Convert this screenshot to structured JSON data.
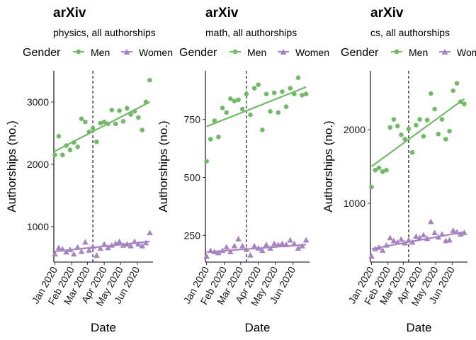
{
  "chart_data": [
    {
      "type": "scatter",
      "title": "arXiv",
      "subtitle": "physics, all authorships",
      "xlabel": "Date",
      "ylabel": "Authorships (no.)",
      "legend": {
        "title": "Gender",
        "position": "top"
      },
      "x_ticks": [
        "Jan 2020",
        "Feb 2020",
        "Mar 2020",
        "Apr 2020",
        "May 2020",
        "Jun 2020"
      ],
      "y_ticks": [
        1000,
        2000,
        3000
      ],
      "xlim": [
        "2019-12-30",
        "2020-06-30"
      ],
      "ylim": [
        430,
        3500
      ],
      "vline": "2020-03-11",
      "series": [
        {
          "name": "Men",
          "marker": "circle",
          "color": "#74b86a",
          "x": [
            "2020-01-01",
            "2020-01-08",
            "2020-01-15",
            "2020-01-22",
            "2020-01-29",
            "2020-02-05",
            "2020-02-12",
            "2020-02-19",
            "2020-02-26",
            "2020-03-04",
            "2020-03-11",
            "2020-03-18",
            "2020-03-25",
            "2020-04-01",
            "2020-04-08",
            "2020-04-15",
            "2020-04-22",
            "2020-04-29",
            "2020-05-06",
            "2020-05-13",
            "2020-05-20",
            "2020-05-27",
            "2020-06-03",
            "2020-06-10",
            "2020-06-17",
            "2020-06-24"
          ],
          "y": [
            2150,
            2450,
            2150,
            2300,
            2230,
            2350,
            2280,
            2730,
            2680,
            2520,
            2580,
            2360,
            2660,
            2680,
            2650,
            2870,
            2650,
            2860,
            2690,
            2900,
            2800,
            2850,
            2750,
            2550,
            3000,
            3350
          ],
          "trend": {
            "x": [
              "2020-01-01",
              "2020-06-24"
            ],
            "y": [
              2210,
              3000
            ]
          }
        },
        {
          "name": "Women",
          "marker": "triangle",
          "color": "#a783c1",
          "x": [
            "2020-01-01",
            "2020-01-08",
            "2020-01-15",
            "2020-01-22",
            "2020-01-29",
            "2020-02-05",
            "2020-02-12",
            "2020-02-19",
            "2020-02-26",
            "2020-03-04",
            "2020-03-11",
            "2020-03-18",
            "2020-03-25",
            "2020-04-01",
            "2020-04-08",
            "2020-04-15",
            "2020-04-22",
            "2020-04-29",
            "2020-05-06",
            "2020-05-13",
            "2020-05-20",
            "2020-05-27",
            "2020-06-03",
            "2020-06-10",
            "2020-06-17",
            "2020-06-24"
          ],
          "y": [
            560,
            660,
            640,
            590,
            630,
            560,
            670,
            600,
            750,
            620,
            680,
            540,
            650,
            720,
            660,
            700,
            730,
            760,
            700,
            720,
            690,
            760,
            720,
            690,
            740,
            900
          ],
          "trend": {
            "x": [
              "2020-01-01",
              "2020-06-24"
            ],
            "y": [
              600,
              760
            ]
          }
        }
      ]
    },
    {
      "type": "scatter",
      "title": "arXiv",
      "subtitle": "math, all authorships",
      "xlabel": "Date",
      "ylabel": "Authorships (no.)",
      "legend": {
        "title": "Gender",
        "position": "top"
      },
      "x_ticks": [
        "Jan 2020",
        "Feb 2020",
        "Mar 2020",
        "Apr 2020",
        "May 2020",
        "Jun 2020"
      ],
      "y_ticks": [
        250,
        500,
        750
      ],
      "xlim": [
        "2019-12-30",
        "2020-06-30"
      ],
      "ylim": [
        135,
        960
      ],
      "vline": "2020-03-11",
      "series": [
        {
          "name": "Men",
          "marker": "circle",
          "color": "#74b86a",
          "x": [
            "2020-01-01",
            "2020-01-08",
            "2020-01-15",
            "2020-01-22",
            "2020-01-29",
            "2020-02-05",
            "2020-02-12",
            "2020-02-19",
            "2020-02-26",
            "2020-03-04",
            "2020-03-11",
            "2020-03-18",
            "2020-03-25",
            "2020-04-01",
            "2020-04-08",
            "2020-04-15",
            "2020-04-22",
            "2020-04-29",
            "2020-05-06",
            "2020-05-13",
            "2020-05-20",
            "2020-05-27",
            "2020-06-03",
            "2020-06-10",
            "2020-06-17",
            "2020-06-24"
          ],
          "y": [
            570,
            665,
            745,
            675,
            800,
            780,
            840,
            830,
            835,
            795,
            860,
            770,
            885,
            900,
            705,
            860,
            785,
            865,
            780,
            870,
            805,
            885,
            860,
            930,
            855,
            860
          ],
          "trend": {
            "x": [
              "2020-01-01",
              "2020-06-24"
            ],
            "y": [
              720,
              890
            ]
          }
        },
        {
          "name": "Women",
          "marker": "triangle",
          "color": "#a783c1",
          "x": [
            "2020-01-01",
            "2020-01-08",
            "2020-01-15",
            "2020-01-22",
            "2020-01-29",
            "2020-02-05",
            "2020-02-12",
            "2020-02-19",
            "2020-02-26",
            "2020-03-04",
            "2020-03-11",
            "2020-03-18",
            "2020-03-25",
            "2020-04-01",
            "2020-04-08",
            "2020-04-15",
            "2020-04-22",
            "2020-04-29",
            "2020-05-06",
            "2020-05-13",
            "2020-05-20",
            "2020-05-27",
            "2020-06-03",
            "2020-06-10",
            "2020-06-17",
            "2020-06-24"
          ],
          "y": [
            160,
            185,
            180,
            175,
            185,
            200,
            180,
            205,
            235,
            205,
            190,
            165,
            205,
            195,
            185,
            210,
            195,
            215,
            210,
            215,
            210,
            230,
            215,
            195,
            205,
            230
          ],
          "trend": {
            "x": [
              "2020-01-01",
              "2020-06-24"
            ],
            "y": [
              178,
              210
            ]
          }
        }
      ]
    },
    {
      "type": "scatter",
      "title": "arXiv",
      "subtitle": "cs, all authorships",
      "xlabel": "Date",
      "ylabel": "Authorships (no.)",
      "legend": {
        "title": "Gender",
        "position": "top"
      },
      "x_ticks": [
        "Jan 2020",
        "Feb 2020",
        "Mar 2020",
        "Apr 2020",
        "May 2020",
        "Jun 2020"
      ],
      "y_ticks": [
        1000,
        2000
      ],
      "xlim": [
        "2019-12-30",
        "2020-06-30"
      ],
      "ylim": [
        200,
        2800
      ],
      "vline": "2020-03-11",
      "series": [
        {
          "name": "Men",
          "marker": "circle",
          "color": "#74b86a",
          "x": [
            "2020-01-01",
            "2020-01-08",
            "2020-01-15",
            "2020-01-22",
            "2020-01-29",
            "2020-02-05",
            "2020-02-12",
            "2020-02-19",
            "2020-02-26",
            "2020-03-04",
            "2020-03-11",
            "2020-03-18",
            "2020-03-25",
            "2020-04-01",
            "2020-04-08",
            "2020-04-15",
            "2020-04-22",
            "2020-04-29",
            "2020-05-06",
            "2020-05-13",
            "2020-05-20",
            "2020-05-27",
            "2020-06-03",
            "2020-06-10",
            "2020-06-17",
            "2020-06-24"
          ],
          "y": [
            1220,
            1450,
            1480,
            1430,
            1450,
            2030,
            2140,
            2050,
            1930,
            1870,
            2010,
            1690,
            2060,
            2140,
            1910,
            2130,
            2490,
            2280,
            1940,
            2140,
            1870,
            1980,
            2530,
            2630,
            2380,
            2350
          ],
          "trend": {
            "x": [
              "2020-01-01",
              "2020-06-24"
            ],
            "y": [
              1500,
              2420
            ]
          }
        },
        {
          "name": "Women",
          "marker": "triangle",
          "color": "#a783c1",
          "x": [
            "2020-01-01",
            "2020-01-08",
            "2020-01-15",
            "2020-01-22",
            "2020-01-29",
            "2020-02-05",
            "2020-02-12",
            "2020-02-19",
            "2020-02-26",
            "2020-03-04",
            "2020-03-11",
            "2020-03-18",
            "2020-03-25",
            "2020-04-01",
            "2020-04-08",
            "2020-04-15",
            "2020-04-22",
            "2020-04-29",
            "2020-05-06",
            "2020-05-13",
            "2020-05-20",
            "2020-05-27",
            "2020-06-03",
            "2020-06-10",
            "2020-06-17",
            "2020-06-24"
          ],
          "y": [
            280,
            380,
            400,
            360,
            430,
            530,
            490,
            470,
            510,
            460,
            500,
            470,
            550,
            530,
            570,
            520,
            750,
            600,
            540,
            580,
            490,
            500,
            630,
            610,
            580,
            600
          ],
          "trend": {
            "x": [
              "2020-01-01",
              "2020-06-24"
            ],
            "y": [
              380,
              610
            ]
          }
        }
      ]
    }
  ]
}
